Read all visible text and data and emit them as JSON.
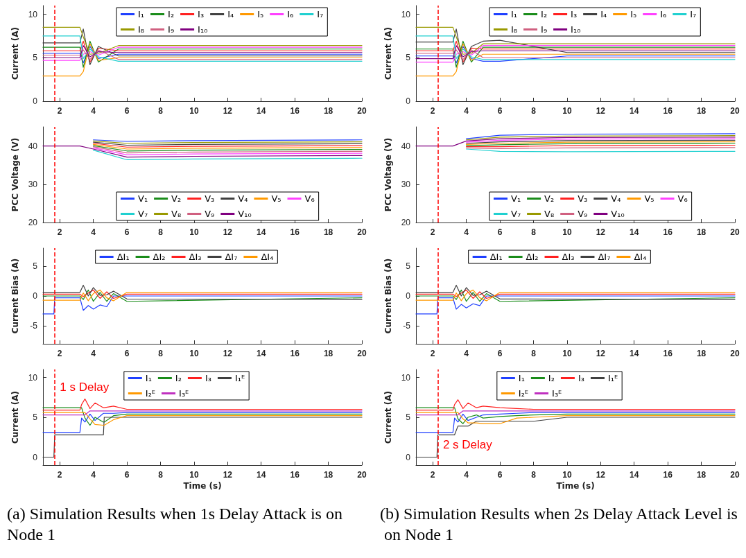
{
  "chart_data": [
    {
      "type": "line",
      "ylabel": "Current (A)",
      "xlim": [
        1,
        20
      ],
      "xticks": [
        2,
        4,
        6,
        8,
        10,
        12,
        14,
        16,
        18,
        20
      ],
      "ylim": [
        0,
        11
      ],
      "yticks": [
        0,
        5,
        10
      ],
      "legend": "top",
      "marker": "none",
      "ref_lines": [
        {
          "axis": "x",
          "value": 1.7,
          "color": "#ff0000",
          "line_style": "dashed"
        }
      ],
      "x": [
        1,
        3.2,
        3.4,
        3.8,
        4.3,
        5.5,
        20
      ],
      "series": [
        {
          "name": "I₁",
          "color": "#1f3fff",
          "values": [
            5.5,
            5.5,
            4.4,
            6.3,
            4.9,
            5.4,
            5.4
          ]
        },
        {
          "name": "I₂",
          "color": "#1a8c1a",
          "values": [
            6.2,
            6.2,
            3.9,
            6.9,
            4.5,
            6.0,
            6.0
          ]
        },
        {
          "name": "I₃",
          "color": "#ff2020",
          "values": [
            5.8,
            5.8,
            6.9,
            4.5,
            6.1,
            5.8,
            5.8
          ]
        },
        {
          "name": "I₄",
          "color": "#404040",
          "values": [
            6.7,
            6.7,
            8.3,
            4.2,
            6.3,
            5.2,
            5.2
          ]
        },
        {
          "name": "I₅",
          "color": "#ff9900",
          "values": [
            2.9,
            2.9,
            3.4,
            6.6,
            4.7,
            5.0,
            5.0
          ]
        },
        {
          "name": "I₆",
          "color": "#ff40ff",
          "values": [
            4.7,
            4.7,
            5.4,
            5.7,
            5.3,
            6.2,
            6.2
          ]
        },
        {
          "name": "I₇",
          "color": "#20d0d0",
          "values": [
            7.5,
            7.5,
            4.9,
            6.0,
            5.1,
            4.6,
            4.6
          ]
        },
        {
          "name": "I₈",
          "color": "#999900",
          "values": [
            8.5,
            8.5,
            7.4,
            5.4,
            5.5,
            6.4,
            6.4
          ]
        },
        {
          "name": "I₉",
          "color": "#d06080",
          "values": [
            5.3,
            5.3,
            5.9,
            4.8,
            5.9,
            4.8,
            4.8
          ]
        },
        {
          "name": "I₁₀",
          "color": "#800080",
          "values": [
            5.0,
            5.0,
            6.4,
            5.1,
            5.7,
            5.6,
            5.6
          ]
        }
      ]
    },
    {
      "type": "line",
      "ylabel": "PCC Voltage (V)",
      "xlim": [
        1,
        20
      ],
      "xticks": [
        2,
        4,
        6,
        8,
        10,
        12,
        14,
        16,
        18,
        20
      ],
      "ylim": [
        20,
        45
      ],
      "yticks": [
        20,
        30,
        40
      ],
      "legend": "bottom",
      "marker": "none",
      "ref_lines": [
        {
          "axis": "x",
          "value": 1.7,
          "color": "#ff0000",
          "line_style": "dashed"
        }
      ],
      "x": [
        1,
        3.2,
        4,
        6,
        10,
        20
      ],
      "series": [
        {
          "name": "V₁",
          "color": "#1f3fff",
          "values": [
            null,
            null,
            41.6,
            41.2,
            41.4,
            41.6
          ]
        },
        {
          "name": "V₂",
          "color": "#1a8c1a",
          "values": [
            null,
            null,
            40.1,
            38.7,
            38.9,
            39.1
          ]
        },
        {
          "name": "V₃",
          "color": "#ff2020",
          "values": [
            null,
            null,
            40.7,
            39.7,
            39.9,
            40.1
          ]
        },
        {
          "name": "V₄",
          "color": "#404040",
          "values": [
            null,
            null,
            41.0,
            40.2,
            40.4,
            40.6
          ]
        },
        {
          "name": "V₅",
          "color": "#ff9900",
          "values": [
            null,
            null,
            40.4,
            39.2,
            39.4,
            39.6
          ]
        },
        {
          "name": "V₆",
          "color": "#ff40ff",
          "values": [
            null,
            null,
            39.5,
            37.7,
            37.9,
            38.1
          ]
        },
        {
          "name": "V₇",
          "color": "#20d0d0",
          "values": [
            null,
            null,
            38.9,
            36.4,
            36.6,
            36.8
          ]
        },
        {
          "name": "V₈",
          "color": "#999900",
          "values": [
            null,
            null,
            41.3,
            40.7,
            40.9,
            41.1
          ]
        },
        {
          "name": "V₉",
          "color": "#d06080",
          "values": [
            null,
            null,
            39.8,
            38.2,
            38.4,
            38.6
          ]
        },
        {
          "name": "V₁₀",
          "color": "#800080",
          "values": [
            40,
            40,
            39.2,
            37.1,
            37.3,
            37.5
          ]
        }
      ]
    },
    {
      "type": "line",
      "ylabel": "Current Bias (A)",
      "xlim": [
        1,
        20
      ],
      "xticks": [
        2,
        4,
        6,
        8,
        10,
        12,
        14,
        16,
        18,
        20
      ],
      "ylim": [
        -8,
        8
      ],
      "yticks": [
        -5,
        0,
        5
      ],
      "legend": "top",
      "marker": "none",
      "ref_lines": [
        {
          "axis": "x",
          "value": 1.7,
          "color": "#ff0000",
          "line_style": "dashed"
        }
      ],
      "x": [
        1,
        1.65,
        1.7,
        3.2,
        3.4,
        3.7,
        4,
        4.4,
        4.8,
        5.2,
        6,
        20
      ],
      "series": [
        {
          "name": "ΔI₁",
          "color": "#1f3fff",
          "values": [
            -3,
            -3,
            -0.3,
            -0.3,
            -2.4,
            -1.6,
            -2.2,
            -1.5,
            -1.8,
            0,
            0,
            0
          ]
        },
        {
          "name": "ΔI₂",
          "color": "#1a8c1a",
          "values": [
            0,
            0,
            0,
            0,
            -0.6,
            1.0,
            -0.9,
            0.6,
            -0.9,
            0.4,
            -0.9,
            -0.3
          ]
        },
        {
          "name": "ΔI₃",
          "color": "#ff2020",
          "values": [
            0.3,
            0.3,
            0.3,
            0.3,
            -0.1,
            0.5,
            1.0,
            -0.4,
            0.7,
            -0.4,
            0.3,
            0.3
          ]
        },
        {
          "name": "ΔI₇",
          "color": "#404040",
          "values": [
            0.6,
            0.6,
            0.6,
            0.6,
            1.8,
            0,
            1.4,
            0.1,
            0.2,
            0.8,
            -0.5,
            -0.6
          ]
        },
        {
          "name": "ΔI₄",
          "color": "#ff9900",
          "values": [
            -0.7,
            -0.7,
            -0.7,
            -0.7,
            0.5,
            -0.8,
            0.4,
            1.0,
            -0.3,
            -0.8,
            0.6,
            0.6
          ]
        }
      ]
    },
    {
      "type": "line",
      "ylabel": "Current (A)",
      "xlabel": "Time (s)",
      "xlim": [
        1,
        20
      ],
      "xticks": [
        2,
        4,
        6,
        8,
        10,
        12,
        14,
        16,
        18,
        20
      ],
      "ylim": [
        -1,
        11
      ],
      "yticks": [
        0,
        5,
        10
      ],
      "legend": "top",
      "marker": "none",
      "ref_lines": [
        {
          "axis": "x",
          "value": 1.7,
          "color": "#ff0000",
          "line_style": "dashed"
        }
      ],
      "annotations": [
        {
          "text": "1 s Delay",
          "x": 1.8,
          "y": 8.8
        },
        "(a) Simulation Results when 1s Delay Attack is on Node 1"
      ],
      "x": [
        1,
        1.65,
        1.7,
        3.2,
        3.3,
        3.5,
        3.8,
        4.1,
        4.6,
        4.65,
        5.2,
        6,
        20
      ],
      "series": [
        {
          "name": "I₁",
          "color": "#1f3fff",
          "values": [
            3.1,
            3.1,
            3.1,
            3.1,
            4.9,
            4.4,
            5.4,
            4.6,
            5.5,
            5.5,
            5.5,
            5.6,
            5.6
          ]
        },
        {
          "name": "I₂",
          "color": "#1a8c1a",
          "values": [
            6.2,
            6.2,
            6.2,
            6.2,
            6.2,
            4.9,
            4.0,
            5.0,
            4.4,
            4.4,
            5.2,
            5.4,
            5.4
          ]
        },
        {
          "name": "I₃",
          "color": "#ff2020",
          "values": [
            5.9,
            5.9,
            5.9,
            5.9,
            6.6,
            7.3,
            6.1,
            6.8,
            6.2,
            6.2,
            6.4,
            6.0,
            6.0
          ]
        },
        {
          "name": "I₁ᴱ",
          "color": "#404040",
          "values": [
            0,
            0,
            2.8,
            2.8,
            2.8,
            2.8,
            2.8,
            2.8,
            2.8,
            5.0,
            5.0,
            5.0,
            5.0
          ]
        },
        {
          "name": "I₂ᴱ",
          "color": "#ff9900",
          "values": [
            5.6,
            5.6,
            5.6,
            5.6,
            5.6,
            5.6,
            4.8,
            4.1,
            4.0,
            4.0,
            4.7,
            5.2,
            5.2
          ]
        },
        {
          "name": "I₃ᴱ",
          "color": "#c030c0",
          "values": [
            5.3,
            5.3,
            5.3,
            5.3,
            5.3,
            5.3,
            5.8,
            5.8,
            5.8,
            5.8,
            5.8,
            5.8,
            5.8
          ]
        }
      ]
    },
    {
      "type": "line",
      "ylabel": "Current (A)",
      "xlim": [
        1,
        20
      ],
      "xticks": [
        2,
        4,
        6,
        8,
        10,
        12,
        14,
        16,
        18,
        20
      ],
      "ylim": [
        0,
        11
      ],
      "yticks": [
        0,
        5,
        10
      ],
      "legend": "top",
      "marker": "none",
      "ref_lines": [
        {
          "axis": "x",
          "value": 2.3,
          "color": "#ff0000",
          "line_style": "dashed"
        }
      ],
      "x": [
        1,
        3.2,
        3.4,
        3.8,
        4.3,
        5,
        6,
        10,
        20
      ],
      "series": [
        {
          "name": "I₁",
          "color": "#1f3fff",
          "values": [
            5.2,
            5.2,
            4.4,
            6.3,
            4.9,
            4.6,
            4.6,
            5.2,
            5.2
          ]
        },
        {
          "name": "I₂",
          "color": "#1a8c1a",
          "values": [
            6.0,
            6.0,
            3.9,
            6.9,
            4.5,
            6.2,
            6.2,
            6.2,
            6.2
          ]
        },
        {
          "name": "I₃",
          "color": "#ff2020",
          "values": [
            5.8,
            5.8,
            6.9,
            4.5,
            6.1,
            6.0,
            6.0,
            6.0,
            6.0
          ]
        },
        {
          "name": "I₄",
          "color": "#404040",
          "values": [
            6.8,
            6.8,
            8.3,
            4.2,
            6.3,
            6.9,
            7.0,
            5.6,
            5.6
          ]
        },
        {
          "name": "I₅",
          "color": "#ff9900",
          "values": [
            2.9,
            2.9,
            3.4,
            6.6,
            4.7,
            5.4,
            5.4,
            5.4,
            5.4
          ]
        },
        {
          "name": "I₆",
          "color": "#ff40ff",
          "values": [
            4.5,
            4.5,
            5.4,
            5.7,
            5.3,
            6.4,
            6.4,
            6.4,
            6.4
          ]
        },
        {
          "name": "I₇",
          "color": "#20d0d0",
          "values": [
            7.5,
            7.5,
            4.9,
            6.0,
            5.1,
            4.8,
            4.8,
            4.8,
            4.8
          ]
        },
        {
          "name": "I₈",
          "color": "#999900",
          "values": [
            8.5,
            8.5,
            7.4,
            5.4,
            5.5,
            6.6,
            6.6,
            6.6,
            6.6
          ]
        },
        {
          "name": "I₉",
          "color": "#d06080",
          "values": [
            5.5,
            5.5,
            5.9,
            4.8,
            5.9,
            5.0,
            5.0,
            5.0,
            5.0
          ]
        },
        {
          "name": "I₁₀",
          "color": "#800080",
          "values": [
            4.9,
            4.9,
            6.4,
            5.1,
            5.7,
            5.8,
            5.8,
            5.8,
            5.8
          ]
        }
      ]
    },
    {
      "type": "line",
      "ylabel": "PCC Voltage (V)",
      "xlim": [
        1,
        20
      ],
      "xticks": [
        2,
        4,
        6,
        8,
        10,
        12,
        14,
        16,
        18,
        20
      ],
      "ylim": [
        20,
        45
      ],
      "yticks": [
        20,
        30,
        40
      ],
      "legend": "bottom",
      "marker": "none",
      "ref_lines": [
        {
          "axis": "x",
          "value": 2.3,
          "color": "#ff0000",
          "line_style": "dashed"
        }
      ],
      "x": [
        1,
        3.2,
        4,
        6,
        10,
        20
      ],
      "series": [
        {
          "name": "V₁",
          "color": "#1f3fff",
          "values": [
            null,
            null,
            41.9,
            42.8,
            43.1,
            43.2
          ]
        },
        {
          "name": "V₂",
          "color": "#1a8c1a",
          "values": [
            null,
            null,
            40.1,
            40.3,
            40.6,
            40.7
          ]
        },
        {
          "name": "V₃",
          "color": "#ff2020",
          "values": [
            null,
            null,
            39.8,
            39.8,
            40.1,
            40.2
          ]
        },
        {
          "name": "V₄",
          "color": "#404040",
          "values": [
            null,
            null,
            40.7,
            41.1,
            41.4,
            41.5
          ]
        },
        {
          "name": "V₅",
          "color": "#ff9900",
          "values": [
            null,
            null,
            40.4,
            40.7,
            41.0,
            41.1
          ]
        },
        {
          "name": "V₆",
          "color": "#ff40ff",
          "values": [
            null,
            null,
            41.0,
            41.5,
            41.8,
            41.9
          ]
        },
        {
          "name": "V₇",
          "color": "#20d0d0",
          "values": [
            null,
            null,
            39.2,
            38.6,
            38.5,
            38.6
          ]
        },
        {
          "name": "V₈",
          "color": "#999900",
          "values": [
            null,
            null,
            41.6,
            42.3,
            42.6,
            42.7
          ]
        },
        {
          "name": "V₉",
          "color": "#d06080",
          "values": [
            null,
            null,
            39.5,
            39.3,
            39.5,
            39.6
          ]
        },
        {
          "name": "V₁₀",
          "color": "#800080",
          "values": [
            40,
            40,
            41.3,
            41.9,
            42.2,
            42.3
          ]
        }
      ]
    },
    {
      "type": "line",
      "ylabel": "Current Bias (A)",
      "xlim": [
        1,
        20
      ],
      "xticks": [
        2,
        4,
        6,
        8,
        10,
        12,
        14,
        16,
        18,
        20
      ],
      "ylim": [
        -8,
        8
      ],
      "yticks": [
        -5,
        0,
        5
      ],
      "legend": "top",
      "marker": "none",
      "ref_lines": [
        {
          "axis": "x",
          "value": 2.3,
          "color": "#ff0000",
          "line_style": "dashed"
        }
      ],
      "x": [
        1,
        2.25,
        2.3,
        3.2,
        3.4,
        3.7,
        4,
        4.4,
        4.8,
        5.2,
        6,
        20
      ],
      "series": [
        {
          "name": "ΔI₁",
          "color": "#1f3fff",
          "values": [
            -3,
            -3,
            -0.3,
            -0.3,
            -2.2,
            -1.4,
            -2.0,
            -1.3,
            -1.6,
            0,
            0,
            0
          ]
        },
        {
          "name": "ΔI₂",
          "color": "#1a8c1a",
          "values": [
            0,
            0,
            0,
            0,
            -0.6,
            1.0,
            -0.9,
            0.6,
            -0.9,
            0.4,
            -0.9,
            -0.3
          ]
        },
        {
          "name": "ΔI₃",
          "color": "#ff2020",
          "values": [
            0.3,
            0.3,
            0.3,
            0.3,
            -0.1,
            0.5,
            1.0,
            -0.4,
            0.7,
            -0.4,
            0.3,
            0.3
          ]
        },
        {
          "name": "ΔI₇",
          "color": "#404040",
          "values": [
            0.6,
            0.6,
            0.6,
            0.6,
            1.8,
            0,
            1.4,
            0.1,
            0.2,
            0.8,
            -0.5,
            -0.6
          ]
        },
        {
          "name": "ΔI₄",
          "color": "#ff9900",
          "values": [
            -0.7,
            -0.7,
            -0.7,
            -0.7,
            0.5,
            -0.8,
            0.4,
            1.0,
            -0.3,
            -0.8,
            0.6,
            0.6
          ]
        }
      ]
    },
    {
      "type": "line",
      "ylabel": "Current (A)",
      "xlabel": "Time (s)",
      "xlim": [
        1,
        20
      ],
      "xticks": [
        2,
        4,
        6,
        8,
        10,
        12,
        14,
        16,
        18,
        20
      ],
      "ylim": [
        -1,
        11
      ],
      "yticks": [
        0,
        5,
        10
      ],
      "legend": "top",
      "marker": "none",
      "ref_lines": [
        {
          "axis": "x",
          "value": 2.3,
          "color": "#ff0000",
          "line_style": "dashed"
        }
      ],
      "annotations": [
        {
          "text": "2 s Delay",
          "x": 2.4,
          "y": 1.6
        },
        "(b) Simulation Results when 2s Delay Attack Level is on Node 1"
      ],
      "x": [
        1,
        2.25,
        2.3,
        3.2,
        3.3,
        3.5,
        3.8,
        4.1,
        4.6,
        5,
        6,
        7,
        8,
        10,
        20
      ],
      "series": [
        {
          "name": "I₁",
          "color": "#1f3fff",
          "values": [
            3.1,
            3.1,
            3.1,
            3.1,
            4.9,
            4.4,
            5.4,
            4.6,
            5.0,
            5.3,
            5.4,
            5.5,
            5.6,
            5.6,
            5.6
          ]
        },
        {
          "name": "I₂",
          "color": "#1a8c1a",
          "values": [
            6.2,
            6.2,
            6.2,
            6.2,
            6.2,
            4.8,
            4.2,
            5.0,
            5.3,
            4.9,
            5.1,
            5.2,
            5.3,
            5.4,
            5.4
          ]
        },
        {
          "name": "I₃",
          "color": "#ff2020",
          "values": [
            5.9,
            5.9,
            5.9,
            5.9,
            6.6,
            7.2,
            6.1,
            6.8,
            6.2,
            6.4,
            6.2,
            6.1,
            6.0,
            6.0,
            6.0
          ]
        },
        {
          "name": "I₁ᴱ",
          "color": "#404040",
          "values": [
            0,
            0,
            2.8,
            2.8,
            2.8,
            3.9,
            3.9,
            3.9,
            4.5,
            4.5,
            4.5,
            4.5,
            4.5,
            5.0,
            5.0
          ]
        },
        {
          "name": "I₂ᴱ",
          "color": "#ff9900",
          "values": [
            5.6,
            5.6,
            5.6,
            5.6,
            5.6,
            5.6,
            4.8,
            4.3,
            4.3,
            4.2,
            4.2,
            4.9,
            5.0,
            5.2,
            5.2
          ]
        },
        {
          "name": "I₃ᴱ",
          "color": "#c030c0",
          "values": [
            5.3,
            5.3,
            5.3,
            5.3,
            5.3,
            5.3,
            5.8,
            5.8,
            5.8,
            5.8,
            5.8,
            5.8,
            5.8,
            5.8,
            5.8
          ]
        }
      ]
    }
  ]
}
